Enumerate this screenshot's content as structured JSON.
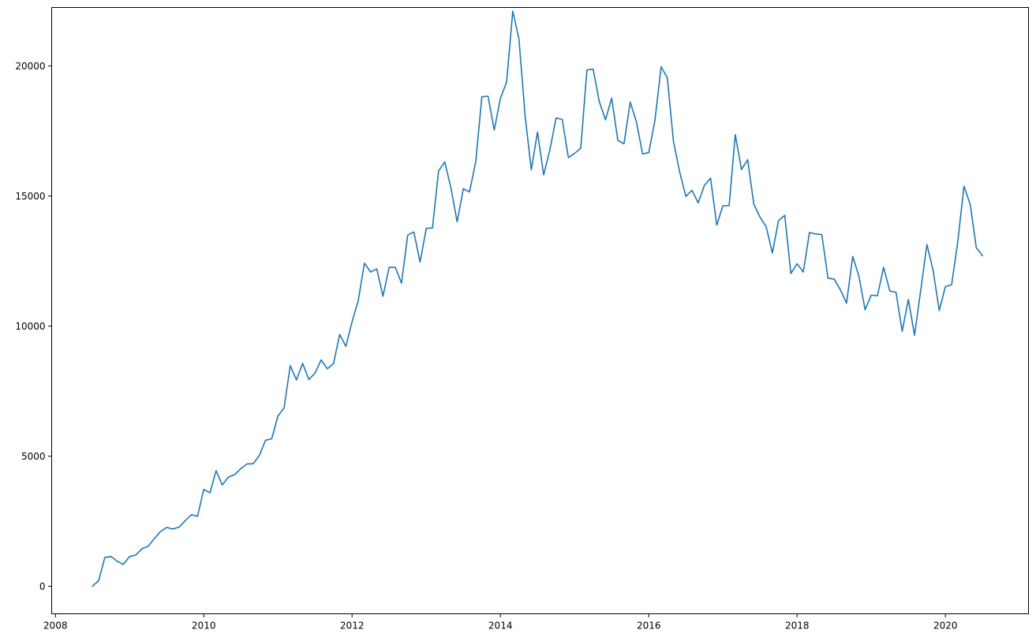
{
  "chart_data": {
    "type": "line",
    "title": "",
    "xlabel": "",
    "ylabel": "",
    "xlim": [
      2007.95,
      2021.12
    ],
    "ylim": [
      -1060,
      22250
    ],
    "xticks": [
      2008,
      2010,
      2012,
      2014,
      2016,
      2018,
      2020
    ],
    "xtick_labels": [
      "2008",
      "2010",
      "2012",
      "2014",
      "2016",
      "2018",
      "2020"
    ],
    "yticks": [
      0,
      5000,
      10000,
      15000,
      20000
    ],
    "ytick_labels": [
      "0",
      "5000",
      "10000",
      "15000",
      "20000"
    ],
    "grid": false,
    "legend": "none",
    "line_color": "#1f77b4",
    "series": [
      {
        "x": [
          "2008-07",
          "2008-08",
          "2008-09",
          "2008-10",
          "2008-11",
          "2008-12",
          "2009-01",
          "2009-02",
          "2009-03",
          "2009-04",
          "2009-05",
          "2009-06",
          "2009-07",
          "2009-08",
          "2009-09",
          "2009-10",
          "2009-11",
          "2009-12",
          "2010-01",
          "2010-02",
          "2010-03",
          "2010-04",
          "2010-05",
          "2010-06",
          "2010-07",
          "2010-08",
          "2010-09",
          "2010-10",
          "2010-11",
          "2010-12",
          "2011-01",
          "2011-02",
          "2011-03",
          "2011-04",
          "2011-05",
          "2011-06",
          "2011-07",
          "2011-08",
          "2011-09",
          "2011-10",
          "2011-11",
          "2011-12",
          "2012-01",
          "2012-02",
          "2012-03",
          "2012-04",
          "2012-05",
          "2012-06",
          "2012-07",
          "2012-08",
          "2012-09",
          "2012-10",
          "2012-11",
          "2012-12",
          "2013-01",
          "2013-02",
          "2013-03",
          "2013-04",
          "2013-05",
          "2013-06",
          "2013-07",
          "2013-08",
          "2013-09",
          "2013-10",
          "2013-11",
          "2013-12",
          "2014-01",
          "2014-02",
          "2014-03",
          "2014-04",
          "2014-05",
          "2014-06",
          "2014-07",
          "2014-08",
          "2014-09",
          "2014-10",
          "2014-11",
          "2014-12",
          "2015-01",
          "2015-02",
          "2015-03",
          "2015-04",
          "2015-05",
          "2015-06",
          "2015-07",
          "2015-08",
          "2015-09",
          "2015-10",
          "2015-11",
          "2015-12",
          "2016-01",
          "2016-02",
          "2016-03",
          "2016-04",
          "2016-05",
          "2016-06",
          "2016-07",
          "2016-08",
          "2016-09",
          "2016-10",
          "2016-11",
          "2016-12",
          "2017-01",
          "2017-02",
          "2017-03",
          "2017-04",
          "2017-05",
          "2017-06",
          "2017-07",
          "2017-08",
          "2017-09",
          "2017-10",
          "2017-11",
          "2017-12",
          "2018-01",
          "2018-02",
          "2018-03",
          "2018-04",
          "2018-05",
          "2018-06",
          "2018-07",
          "2018-08",
          "2018-09",
          "2018-10",
          "2018-11",
          "2018-12",
          "2019-01",
          "2019-02",
          "2019-03",
          "2019-04",
          "2019-05",
          "2019-06",
          "2019-07",
          "2019-08",
          "2019-09",
          "2019-10",
          "2019-11",
          "2019-12",
          "2020-01",
          "2020-02",
          "2020-03",
          "2020-04",
          "2020-05",
          "2020-06",
          "2020-07"
        ],
        "values": [
          0,
          210,
          1110,
          1140,
          960,
          840,
          1140,
          1200,
          1440,
          1530,
          1830,
          2100,
          2260,
          2200,
          2270,
          2520,
          2750,
          2690,
          3720,
          3590,
          4440,
          3890,
          4200,
          4290,
          4520,
          4700,
          4710,
          5030,
          5610,
          5670,
          6540,
          6860,
          8480,
          7930,
          8570,
          7950,
          8190,
          8700,
          8360,
          8560,
          9680,
          9220,
          10170,
          10980,
          12420,
          12080,
          12200,
          11150,
          12260,
          12260,
          11650,
          13500,
          13620,
          12460,
          13760,
          13770,
          15970,
          16310,
          15310,
          14010,
          15280,
          15160,
          16310,
          18820,
          18840,
          17540,
          18760,
          19380,
          22110,
          21040,
          18070,
          16010,
          17460,
          15820,
          16770,
          18000,
          17950,
          16480,
          16640,
          16840,
          19850,
          19880,
          18630,
          17930,
          18770,
          17140,
          17010,
          18610,
          17860,
          16620,
          16670,
          17910,
          19970,
          19550,
          17100,
          15930,
          14990,
          15220,
          14740,
          15410,
          15690,
          13880,
          14630,
          14630,
          17360,
          16020,
          16400,
          14690,
          14190,
          13820,
          12810,
          14060,
          14260,
          12020,
          12400,
          12080,
          13600,
          13540,
          13520,
          11840,
          11810,
          11400,
          10880,
          12680,
          11920,
          10630,
          11190,
          11170,
          12260,
          11350,
          11300,
          9800,
          11030,
          9650,
          11370,
          13140,
          12150,
          10600,
          11520,
          11590,
          13250,
          15380,
          14690,
          13010,
          12710
        ]
      }
    ]
  }
}
